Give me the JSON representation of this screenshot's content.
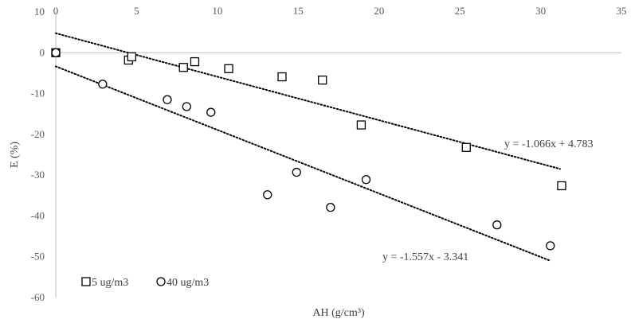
{
  "chart_data": {
    "type": "scatter",
    "xlabel": "AH (g/cm³)",
    "ylabel": "E (%)",
    "xlim": [
      0,
      35
    ],
    "ylim": [
      -60,
      10
    ],
    "xticks": [
      0,
      5,
      10,
      15,
      20,
      25,
      30,
      35
    ],
    "yticks": [
      10,
      0,
      -10,
      -20,
      -30,
      -40,
      -50,
      -60
    ],
    "grid": false,
    "legend_position": "bottom-left",
    "series": [
      {
        "name": "5 ug/m3",
        "marker": "square",
        "x": [
          0.0,
          4.5,
          4.7,
          7.9,
          8.6,
          10.7,
          14.0,
          16.5,
          18.9,
          25.4,
          31.3
        ],
        "y": [
          0.0,
          -1.8,
          -1.0,
          -3.6,
          -2.2,
          -3.9,
          -5.9,
          -6.7,
          -17.7,
          -23.2,
          -32.6
        ],
        "trendline": {
          "slope": -1.066,
          "intercept": 4.783,
          "x_range": [
            0,
            31.2
          ],
          "label": "y = -1.066x + 4.783"
        }
      },
      {
        "name": "40 ug/m3",
        "marker": "circle",
        "x": [
          0.0,
          2.9,
          6.9,
          8.1,
          9.6,
          13.1,
          14.9,
          17.0,
          19.2,
          27.3,
          30.6
        ],
        "y": [
          0.0,
          -7.7,
          -11.5,
          -13.2,
          -14.6,
          -34.8,
          -29.3,
          -37.9,
          -31.1,
          -42.2,
          -47.3
        ],
        "trendline": {
          "slope": -1.557,
          "intercept": -3.341,
          "x_range": [
            0,
            30.6
          ],
          "label": "y = -1.557x - 3.341"
        }
      }
    ]
  }
}
